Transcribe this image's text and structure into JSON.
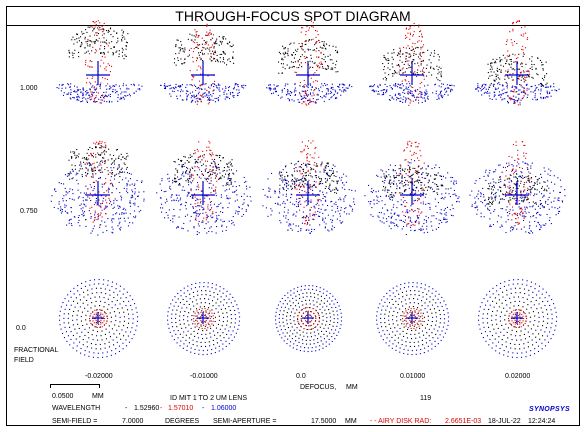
{
  "title": "THROUGH-FOCUS SPOT DIAGRAM",
  "chart_data": {
    "type": "scatter",
    "title": "THROUGH-FOCUS SPOT DIAGRAM",
    "field_axis_label_1": "FRACTIONAL",
    "field_axis_label_2": "FIELD",
    "field_values": [
      "1.000",
      "0.750",
      "0.0"
    ],
    "defocus_label": "DEFOCUS,",
    "defocus_unit": "MM",
    "defocus_values": [
      "-0.02000",
      "-0.01000",
      "0.0",
      "0.01000",
      "0.02000"
    ],
    "defocus_numeric": [
      -0.02,
      -0.01,
      0.0,
      0.01,
      0.02
    ],
    "fields_numeric": [
      1.0,
      0.75,
      0.0
    ],
    "wavelengths": [
      {
        "value": "1.52960",
        "color": "#0000cc"
      },
      {
        "value": "1.57010",
        "color": "#e00000"
      },
      {
        "value": "1.06000",
        "color": "#0000cc"
      }
    ]
  },
  "footer": {
    "scale_value": "0.0500",
    "scale_unit": "MM",
    "lens_title": "ID MIT 1 TO 2 UM LENS",
    "number": "119",
    "wavelength_label": "WAVELENGTH",
    "wavelength_sep": "-",
    "semi_field_label": "SEMI-FIELD =",
    "semi_field_value": "7.0000",
    "semi_field_unit": "DEGREES",
    "semi_aperture_label": "SEMI-APERTURE =",
    "semi_aperture_value": "17.5000",
    "semi_aperture_unit": "MM",
    "airy_label": "- - AIRY DISK RAD:",
    "airy_value": "2.6651E-03",
    "date": "18-JUL-22",
    "time": "12:24:24",
    "logo": "SYNOPSYS"
  },
  "colors": {
    "red": "#e00000",
    "blue": "#0000cc",
    "black": "#000000"
  }
}
